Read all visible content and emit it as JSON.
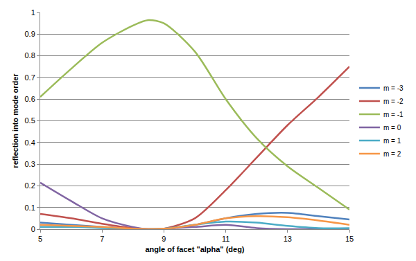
{
  "chart_data": {
    "type": "line",
    "x_label": "angle of facet \"alpha\" (deg)",
    "y_label": "reflection into mode order",
    "x": [
      5,
      6,
      7,
      8,
      8.5,
      9,
      10,
      11,
      12,
      13,
      14,
      15
    ],
    "series": [
      {
        "name": "m = -3",
        "color": "#4f81bd",
        "values": [
          0.03,
          0.02,
          0.01,
          0.002,
          0.0,
          0.002,
          0.02,
          0.05,
          0.07,
          0.075,
          0.06,
          0.045
        ]
      },
      {
        "name": "m = -2",
        "color": "#c0504d",
        "values": [
          0.07,
          0.05,
          0.025,
          0.005,
          0.0,
          0.002,
          0.05,
          0.18,
          0.33,
          0.48,
          0.61,
          0.75
        ]
      },
      {
        "name": "m = -1",
        "color": "#9bbb59",
        "values": [
          0.61,
          0.74,
          0.86,
          0.94,
          0.965,
          0.95,
          0.82,
          0.6,
          0.42,
          0.29,
          0.19,
          0.09
        ]
      },
      {
        "name": "m = 0",
        "color": "#8064a2",
        "values": [
          0.215,
          0.13,
          0.05,
          0.01,
          0.0,
          0.002,
          0.01,
          0.02,
          0.005,
          0.0,
          0.0,
          0.0
        ]
      },
      {
        "name": "m = 1",
        "color": "#4bacc6",
        "values": [
          0.01,
          0.01,
          0.005,
          0.001,
          0.0,
          0.002,
          0.02,
          0.035,
          0.03,
          0.015,
          0.005,
          0.005
        ]
      },
      {
        "name": "m = 2",
        "color": "#f79646",
        "values": [
          0.02,
          0.015,
          0.01,
          0.002,
          0.0,
          0.002,
          0.02,
          0.05,
          0.06,
          0.055,
          0.04,
          0.02
        ]
      }
    ],
    "xlim": [
      5,
      15
    ],
    "xticks": [
      5,
      7,
      9,
      11,
      13,
      15
    ],
    "ylim": [
      0,
      1
    ],
    "yticks": [
      0,
      0.1,
      0.2,
      0.3,
      0.4,
      0.5,
      0.6,
      0.7,
      0.8,
      0.9,
      1
    ],
    "grid": true,
    "legend": "right"
  }
}
